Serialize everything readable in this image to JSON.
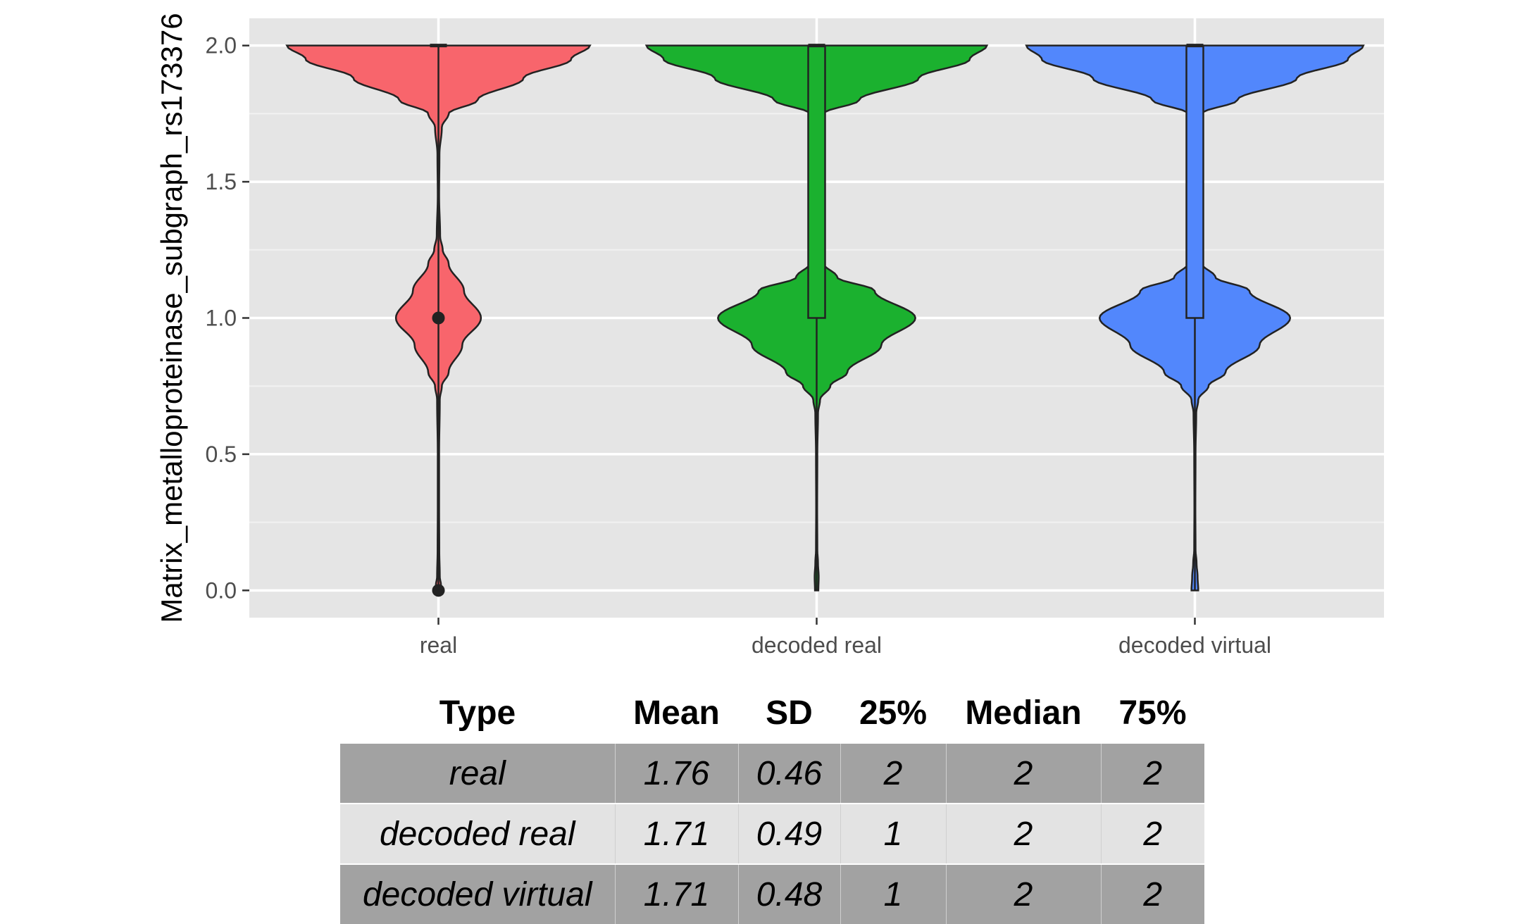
{
  "chart_data": {
    "type": "violin",
    "ylabel": "Matrix_metalloproteinase_subgraph_rs173376",
    "xlabel": "",
    "ylim": [
      -0.1,
      2.1
    ],
    "yticks": [
      "0.0",
      "0.5",
      "1.0",
      "1.5",
      "2.0"
    ],
    "ytick_values": [
      0,
      0.5,
      1.0,
      1.5,
      2.0
    ],
    "grid": true,
    "background": "#e5e5e5",
    "categories": [
      "real",
      "decoded real",
      "decoded virtual"
    ],
    "series": [
      {
        "category": "real",
        "color": "#f8656c",
        "density": [
          [
            0.0,
            0.03
          ],
          [
            0.02,
            0.015
          ],
          [
            0.05,
            0.008
          ],
          [
            0.15,
            0.005
          ],
          [
            0.3,
            0.004
          ],
          [
            0.5,
            0.004
          ],
          [
            0.7,
            0.008
          ],
          [
            0.75,
            0.02
          ],
          [
            0.8,
            0.06
          ],
          [
            0.9,
            0.14
          ],
          [
            1.0,
            0.25
          ],
          [
            1.1,
            0.15
          ],
          [
            1.2,
            0.06
          ],
          [
            1.25,
            0.025
          ],
          [
            1.3,
            0.01
          ],
          [
            1.45,
            0.004
          ],
          [
            1.6,
            0.006
          ],
          [
            1.7,
            0.02
          ],
          [
            1.75,
            0.06
          ],
          [
            1.8,
            0.23
          ],
          [
            1.88,
            0.5
          ],
          [
            1.95,
            0.78
          ],
          [
            2.0,
            0.89
          ]
        ],
        "box": {
          "q1": 2,
          "median": 2,
          "q3": 2
        },
        "outliers": [
          1.0,
          0.0
        ]
      },
      {
        "category": "decoded real",
        "color": "#1bb12f",
        "density": [
          [
            0.0,
            0.01
          ],
          [
            0.05,
            0.012
          ],
          [
            0.1,
            0.008
          ],
          [
            0.15,
            0.004
          ],
          [
            0.3,
            0.003
          ],
          [
            0.5,
            0.004
          ],
          [
            0.65,
            0.008
          ],
          [
            0.7,
            0.02
          ],
          [
            0.75,
            0.08
          ],
          [
            0.8,
            0.18
          ],
          [
            0.9,
            0.38
          ],
          [
            1.0,
            0.58
          ],
          [
            1.1,
            0.34
          ],
          [
            1.15,
            0.12
          ],
          [
            1.2,
            0.04
          ],
          [
            1.3,
            0.01
          ],
          [
            1.5,
            0.005
          ],
          [
            1.7,
            0.01
          ],
          [
            1.75,
            0.04
          ],
          [
            1.8,
            0.25
          ],
          [
            1.88,
            0.6
          ],
          [
            1.95,
            0.9
          ],
          [
            2.0,
            1.0
          ]
        ],
        "box": {
          "q1": 1,
          "median": 2,
          "q3": 2
        },
        "outliers": []
      },
      {
        "category": "decoded virtual",
        "color": "#5287fc",
        "density": [
          [
            0.0,
            0.02
          ],
          [
            0.05,
            0.016
          ],
          [
            0.1,
            0.01
          ],
          [
            0.15,
            0.004
          ],
          [
            0.3,
            0.003
          ],
          [
            0.5,
            0.004
          ],
          [
            0.65,
            0.008
          ],
          [
            0.7,
            0.02
          ],
          [
            0.75,
            0.08
          ],
          [
            0.8,
            0.18
          ],
          [
            0.9,
            0.38
          ],
          [
            1.0,
            0.56
          ],
          [
            1.1,
            0.32
          ],
          [
            1.15,
            0.12
          ],
          [
            1.2,
            0.04
          ],
          [
            1.3,
            0.01
          ],
          [
            1.5,
            0.005
          ],
          [
            1.7,
            0.01
          ],
          [
            1.75,
            0.04
          ],
          [
            1.8,
            0.25
          ],
          [
            1.88,
            0.6
          ],
          [
            1.95,
            0.9
          ],
          [
            2.0,
            0.99
          ]
        ],
        "box": {
          "q1": 1,
          "median": 2,
          "q3": 2
        },
        "outliers": []
      }
    ]
  },
  "table": {
    "headers": [
      "Type",
      "Mean",
      "SD",
      "25%",
      "Median",
      "75%"
    ],
    "rows": [
      [
        "real",
        "1.76",
        "0.46",
        "2",
        "2",
        "2"
      ],
      [
        "decoded real",
        "1.71",
        "0.49",
        "1",
        "2",
        "2"
      ],
      [
        "decoded virtual",
        "1.71",
        "0.48",
        "1",
        "2",
        "2"
      ]
    ]
  }
}
